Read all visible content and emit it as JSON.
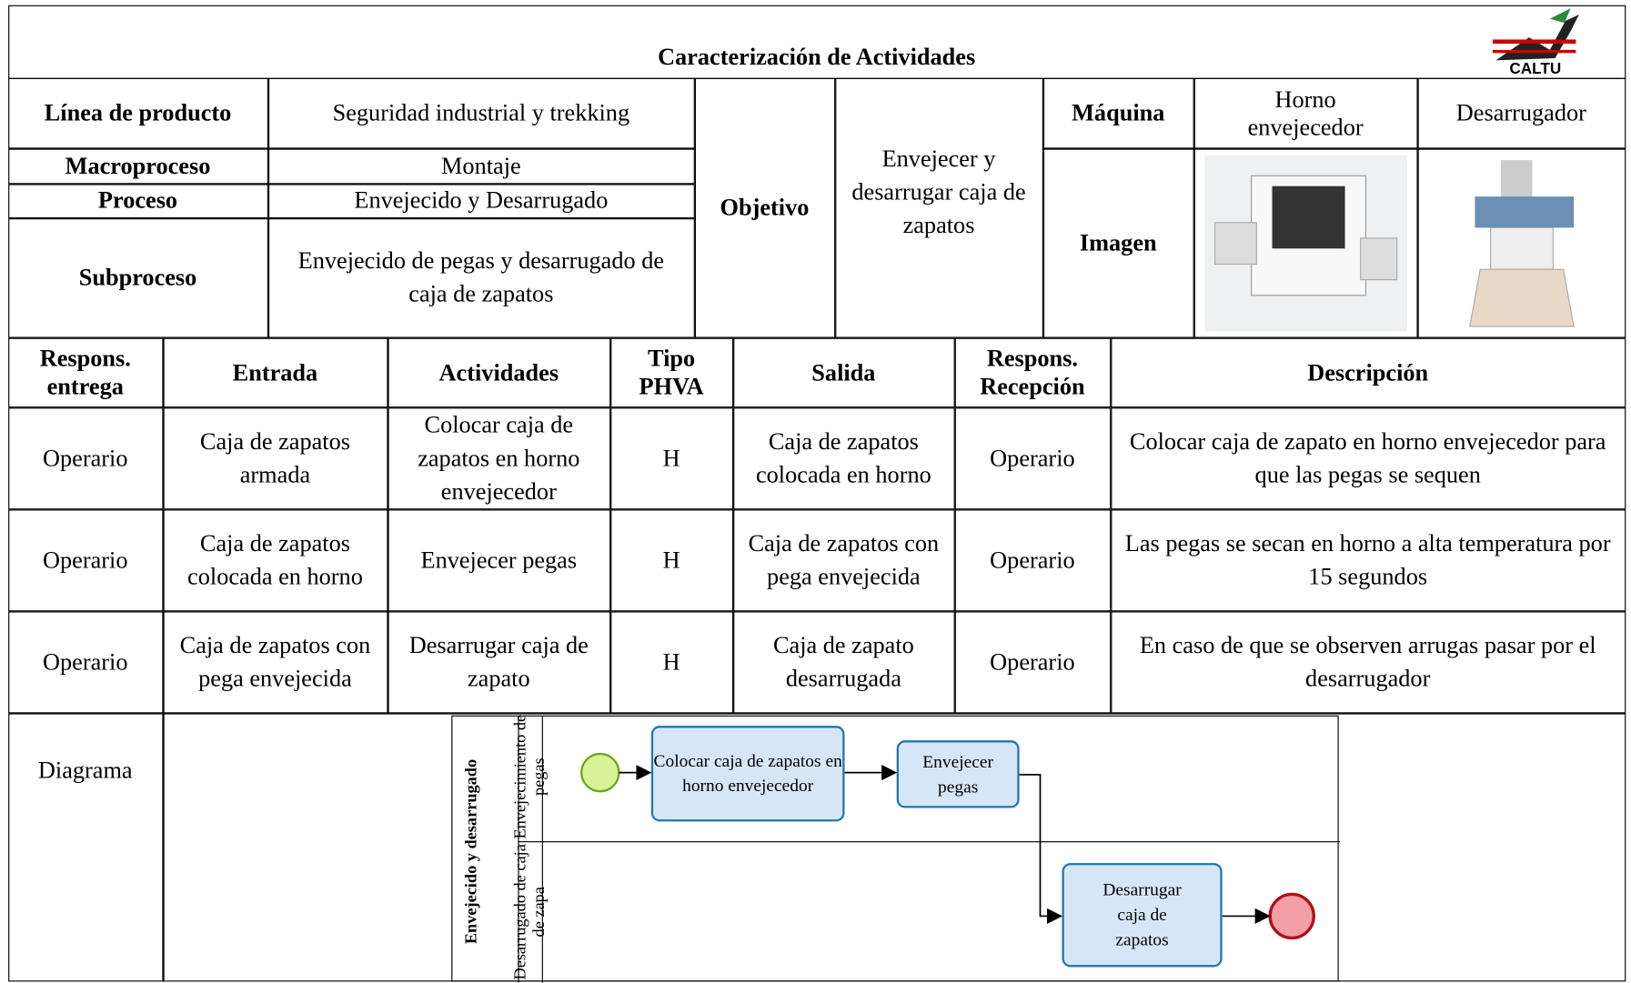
{
  "header": {
    "title": "Caracterización de Actividades",
    "logo": "CALTU"
  },
  "info": {
    "linea_label": "Línea de producto",
    "linea_value": "Seguridad industrial y trekking",
    "macro_label": "Macroproceso",
    "macro_value": "Montaje",
    "proceso_label": "Proceso",
    "proceso_value": "Envejecido y Desarrugado",
    "sub_label": "Subproceso",
    "sub_value": "Envejecido de pegas y desarrugado de caja de zapatos",
    "objetivo_label": "Objetivo",
    "objetivo_value": "Envejecer y desarrugar caja de zapatos",
    "maquina_label": "Máquina",
    "machines": [
      "Horno envejecedor",
      "Desarrugador"
    ],
    "imagen_label": "Imagen"
  },
  "table": {
    "headers": [
      "Respons. entrega",
      "Entrada",
      "Actividades",
      "Tipo PHVA",
      "Salida",
      "Respons. Recepción",
      "Descripción"
    ],
    "rows": [
      [
        "Operario",
        "Caja de zapatos armada",
        "Colocar caja de zapatos en horno envejecedor",
        "H",
        "Caja de zapatos colocada en horno",
        "Operario",
        "Colocar caja de zapato en horno envejecedor para que las pegas se sequen"
      ],
      [
        "Operario",
        "Caja de zapatos colocada en horno",
        "Envejecer pegas",
        "H",
        "Caja de zapatos con pega envejecida",
        "Operario",
        "Las pegas se secan en horno a alta temperatura por 15 segundos"
      ],
      [
        "Operario",
        "Caja de zapatos con pega envejecida",
        "Desarrugar caja de zapato",
        "H",
        "Caja de zapato desarrugada",
        "Operario",
        "En caso de que se observen arrugas pasar por el desarrugador"
      ]
    ]
  },
  "diagram": {
    "label": "Diagrama",
    "pool": "Envejecido y desarrugado",
    "lanes": [
      "Envejecimiento de pegas",
      "Desarrugado de caja de zapa"
    ],
    "tasks": [
      "Colocar caja de zapatos en horno envejecedor",
      "Envejecer pegas",
      "Desarrugar caja de zapatos"
    ]
  }
}
